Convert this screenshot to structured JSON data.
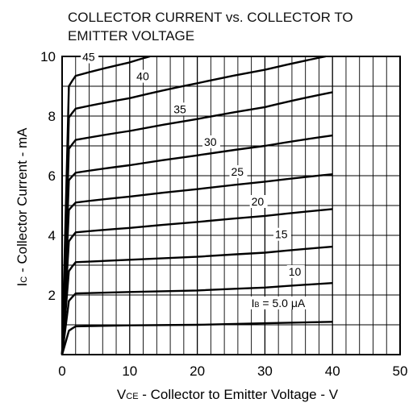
{
  "chart_data": {
    "type": "line",
    "title": "COLLECTOR CURRENT vs. COLLECTOR TO EMITTER VOLTAGE",
    "xlabel_main": "V",
    "xlabel_sub": "CE",
    "xlabel_rest": " - Collector to Emitter Voltage - V",
    "ylabel_main": "I",
    "ylabel_sub": "C",
    "ylabel_rest": " - Collector Current - mA",
    "xlim": [
      0,
      50
    ],
    "ylim": [
      0,
      10
    ],
    "x_ticks": [
      "0",
      "10",
      "20",
      "30",
      "40",
      "50"
    ],
    "y_ticks": [
      "2",
      "4",
      "6",
      "8",
      "10"
    ],
    "grid": true,
    "series": [
      {
        "name": "5.0",
        "points": [
          [
            0,
            0
          ],
          [
            1,
            0.8
          ],
          [
            2,
            0.95
          ],
          [
            10,
            0.98
          ],
          [
            20,
            1.0
          ],
          [
            30,
            1.05
          ],
          [
            40,
            1.1
          ]
        ]
      },
      {
        "name": "10",
        "points": [
          [
            0,
            0
          ],
          [
            1,
            1.8
          ],
          [
            2,
            2.05
          ],
          [
            10,
            2.1
          ],
          [
            20,
            2.15
          ],
          [
            30,
            2.25
          ],
          [
            40,
            2.4
          ]
        ]
      },
      {
        "name": "15",
        "points": [
          [
            0,
            0
          ],
          [
            1,
            2.8
          ],
          [
            2,
            3.1
          ],
          [
            10,
            3.18
          ],
          [
            20,
            3.28
          ],
          [
            30,
            3.42
          ],
          [
            40,
            3.62
          ]
        ]
      },
      {
        "name": "20",
        "points": [
          [
            0,
            0
          ],
          [
            1,
            3.8
          ],
          [
            2,
            4.1
          ],
          [
            10,
            4.25
          ],
          [
            20,
            4.45
          ],
          [
            30,
            4.65
          ],
          [
            40,
            4.88
          ]
        ]
      },
      {
        "name": "25",
        "points": [
          [
            0,
            0
          ],
          [
            1,
            4.85
          ],
          [
            2,
            5.1
          ],
          [
            10,
            5.3
          ],
          [
            20,
            5.55
          ],
          [
            30,
            5.8
          ],
          [
            40,
            6.05
          ]
        ]
      },
      {
        "name": "30",
        "points": [
          [
            0,
            0
          ],
          [
            1,
            5.85
          ],
          [
            2,
            6.1
          ],
          [
            10,
            6.35
          ],
          [
            20,
            6.68
          ],
          [
            30,
            7.0
          ],
          [
            40,
            7.35
          ]
        ]
      },
      {
        "name": "35",
        "points": [
          [
            0,
            0
          ],
          [
            1,
            6.9
          ],
          [
            2,
            7.2
          ],
          [
            10,
            7.5
          ],
          [
            20,
            7.9
          ],
          [
            30,
            8.3
          ],
          [
            40,
            8.8
          ]
        ]
      },
      {
        "name": "40",
        "points": [
          [
            0,
            0
          ],
          [
            1,
            7.95
          ],
          [
            2,
            8.25
          ],
          [
            10,
            8.6
          ],
          [
            20,
            9.1
          ],
          [
            30,
            9.55
          ],
          [
            39,
            10
          ]
        ]
      },
      {
        "name": "45",
        "points": [
          [
            0,
            0
          ],
          [
            1,
            9.0
          ],
          [
            2,
            9.35
          ],
          [
            10,
            9.8
          ],
          [
            13,
            10
          ]
        ]
      }
    ],
    "labels": [
      {
        "text": "45",
        "x": 3,
        "y": 9.85
      },
      {
        "text": "40",
        "x": 11,
        "y": 9.2
      },
      {
        "text": "35",
        "x": 16.5,
        "y": 8.1
      },
      {
        "text": "30",
        "x": 21,
        "y": 7.0
      },
      {
        "text": "25",
        "x": 25,
        "y": 6.0
      },
      {
        "text": "20",
        "x": 28,
        "y": 5.0
      },
      {
        "text": "15",
        "x": 31.5,
        "y": 3.9
      },
      {
        "text": "10",
        "x": 33.5,
        "y": 2.65
      },
      {
        "text": "I",
        "text_sub": "B",
        "text_rest": " = 5.0 μA",
        "x": 28,
        "y": 1.6
      }
    ]
  }
}
